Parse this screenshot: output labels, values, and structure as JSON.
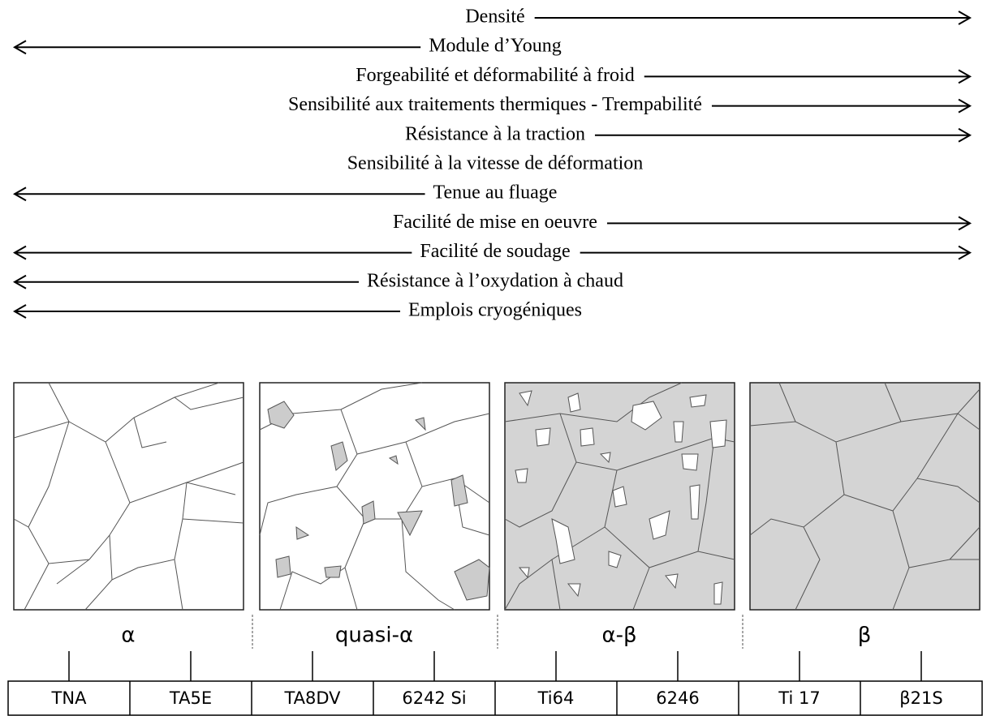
{
  "properties": [
    {
      "label": "Densité",
      "arrow": "right"
    },
    {
      "label": "Module d’Young",
      "arrow": "left"
    },
    {
      "label": "Forgeabilité et déformabilité à froid",
      "arrow": "right"
    },
    {
      "label": "Sensibilité aux traitements thermiques - Trempabilité",
      "arrow": "right"
    },
    {
      "label": "Résistance à la traction",
      "arrow": "right"
    },
    {
      "label": "Sensibilité à la vitesse de déformation",
      "arrow": "none"
    },
    {
      "label": "Tenue au fluage",
      "arrow": "left"
    },
    {
      "label": "Facilité de mise en oeuvre",
      "arrow": "right"
    },
    {
      "label": "Facilité de soudage",
      "arrow": "both"
    },
    {
      "label": "Résistance à l’oxydation à chaud",
      "arrow": "left"
    },
    {
      "label": "Emplois cryogéniques",
      "arrow": "left"
    }
  ],
  "phases": [
    "α",
    "quasi-α",
    "α-β",
    "β"
  ],
  "alloys": [
    "TNA",
    "TA5E",
    "TA8DV",
    "6242 Si",
    "Ti64",
    "6246",
    "Ti 17",
    "β21S"
  ]
}
